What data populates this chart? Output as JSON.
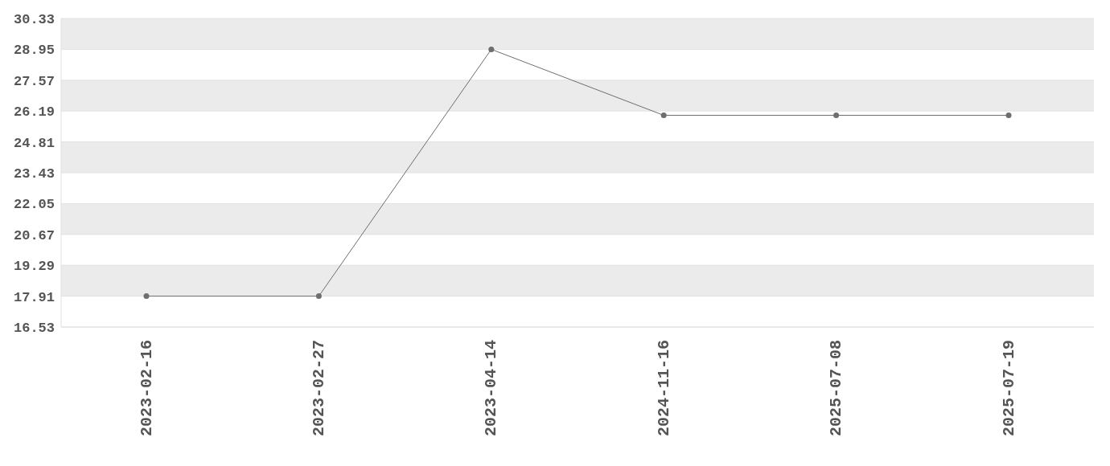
{
  "chart_data": {
    "type": "line",
    "categories": [
      "2023-02-16",
      "2023-02-27",
      "2023-04-14",
      "2024-11-16",
      "2025-07-08",
      "2025-07-19"
    ],
    "series": [
      {
        "color": "#6e6e6e",
        "values": [
          17.91,
          17.91,
          28.95,
          26.0,
          26.0,
          26.0
        ]
      }
    ],
    "ylim": [
      16.53,
      30.33
    ],
    "yticks": [
      16.53,
      17.91,
      19.29,
      20.67,
      22.05,
      23.43,
      24.81,
      26.19,
      27.57,
      28.95,
      30.33
    ],
    "grid": "y",
    "legend": false,
    "marker": "circle",
    "line_style": "solid"
  }
}
